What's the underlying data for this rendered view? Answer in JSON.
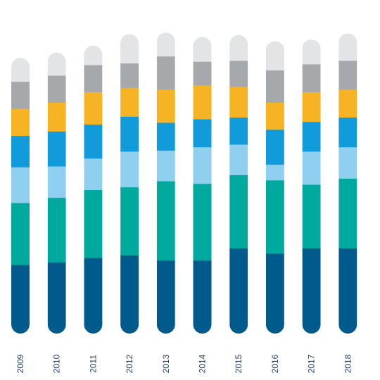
{
  "chart_data": {
    "type": "bar",
    "stacked": true,
    "categories": [
      "2009",
      "2010",
      "2011",
      "2012",
      "2013",
      "2014",
      "2015",
      "2016",
      "2017",
      "2018"
    ],
    "series": [
      {
        "color": "#005a8b",
        "values": [
          79,
          82,
          87,
          90,
          84,
          84,
          98,
          92,
          98,
          98
        ]
      },
      {
        "color": "#00a99d",
        "values": [
          71,
          74,
          78,
          78,
          91,
          88,
          84,
          84,
          73,
          80
        ]
      },
      {
        "color": "#8fd0f1",
        "values": [
          41,
          36,
          36,
          41,
          35,
          42,
          35,
          18,
          38,
          36
        ]
      },
      {
        "color": "#129bdb",
        "values": [
          36,
          40,
          39,
          40,
          32,
          32,
          31,
          40,
          34,
          34
        ]
      },
      {
        "color": "#f6b324",
        "values": [
          31,
          33,
          37,
          33,
          38,
          39,
          35,
          31,
          34,
          32
        ]
      },
      {
        "color": "#a6a9ac",
        "values": [
          31,
          31,
          31,
          28,
          38,
          27,
          30,
          37,
          32,
          33
        ]
      },
      {
        "color": "#e3e4e6",
        "values": [
          27,
          26,
          22,
          33,
          27,
          28,
          29,
          33,
          28,
          31
        ]
      }
    ],
    "ylim": [
      0,
      350
    ],
    "grid": false,
    "legend": "none"
  }
}
